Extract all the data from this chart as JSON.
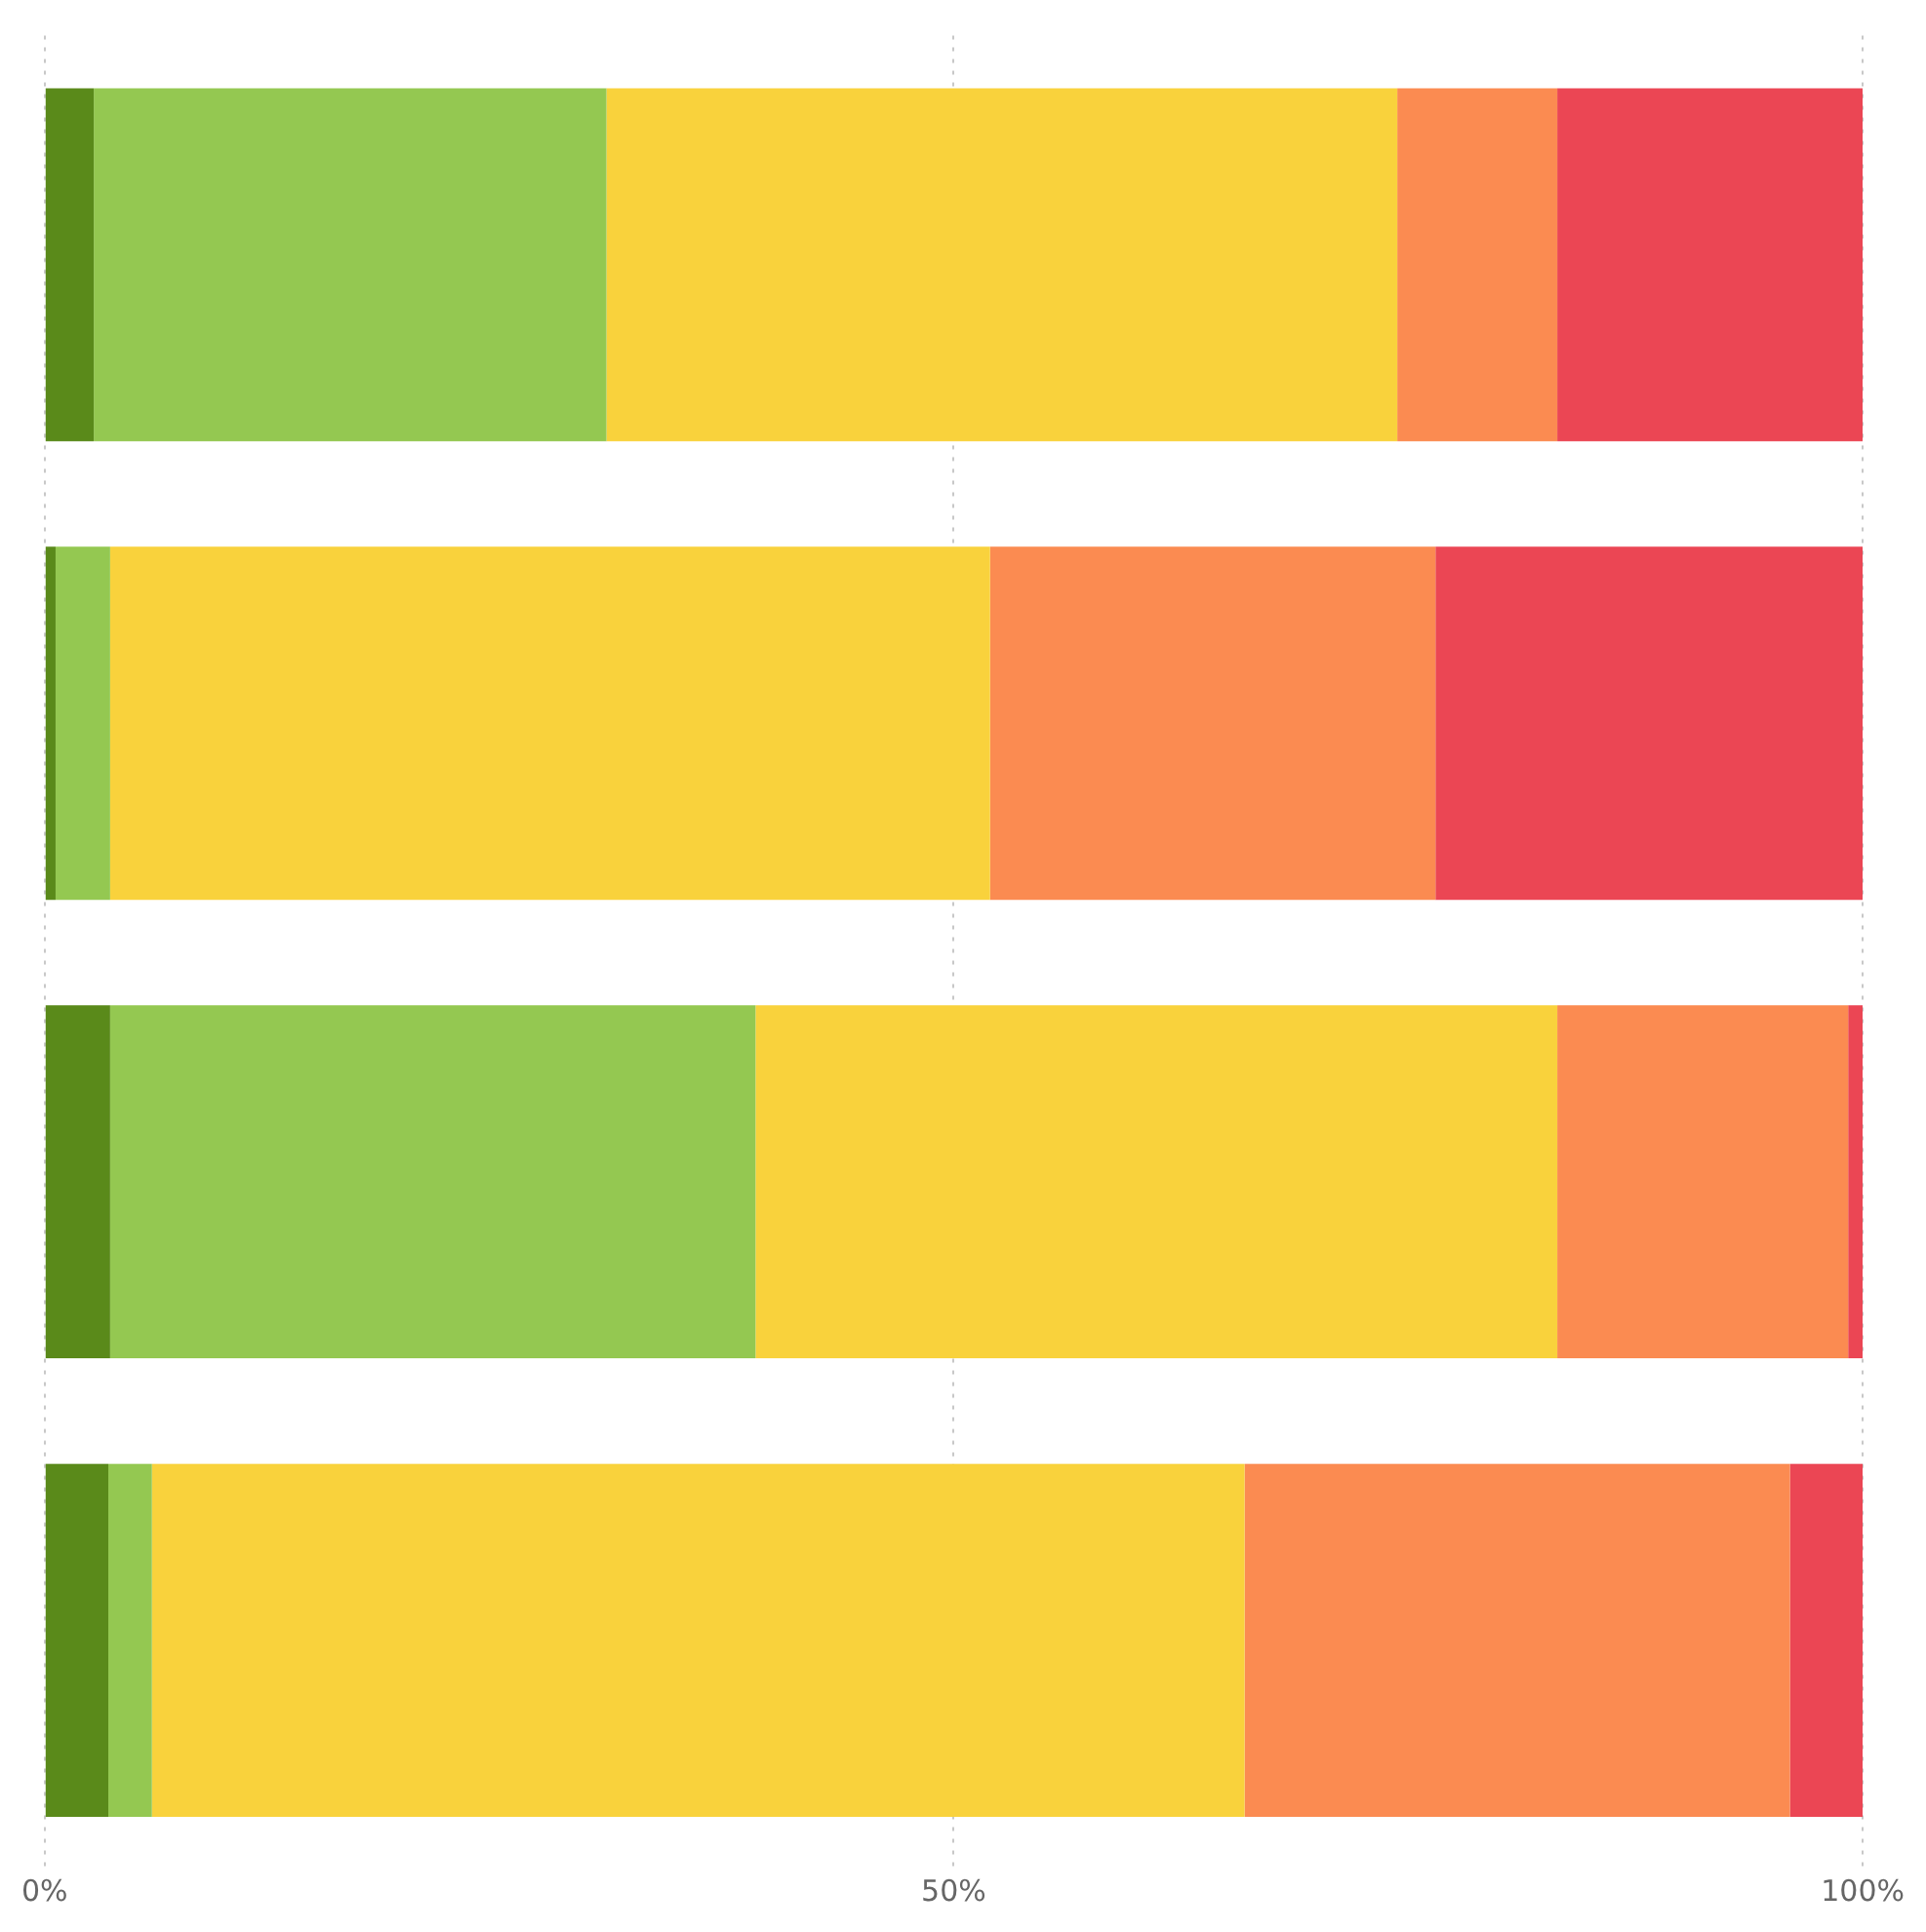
{
  "chart_data": {
    "type": "bar",
    "orientation": "horizontal",
    "stacked": true,
    "categories": [
      null,
      null,
      null,
      null
    ],
    "series": [
      {
        "color": "#5a8a1a",
        "values": [
          2.7,
          0.6,
          3.6,
          3.5
        ]
      },
      {
        "color": "#94c851",
        "values": [
          28.2,
          3.0,
          35.5,
          2.4
        ]
      },
      {
        "color": "#f9d23c",
        "values": [
          43.5,
          48.4,
          44.1,
          60.1
        ]
      },
      {
        "color": "#fb8b51",
        "values": [
          8.8,
          24.5,
          16.0,
          30.0
        ]
      },
      {
        "color": "#eb4654",
        "values": [
          16.8,
          23.5,
          0.8,
          4.0
        ]
      }
    ],
    "xlim": [
      0,
      100
    ],
    "xticks": [
      {
        "value": 0,
        "label": "0%"
      },
      {
        "value": 50,
        "label": "50%"
      },
      {
        "value": 100,
        "label": "100%"
      }
    ],
    "grid": "x"
  }
}
